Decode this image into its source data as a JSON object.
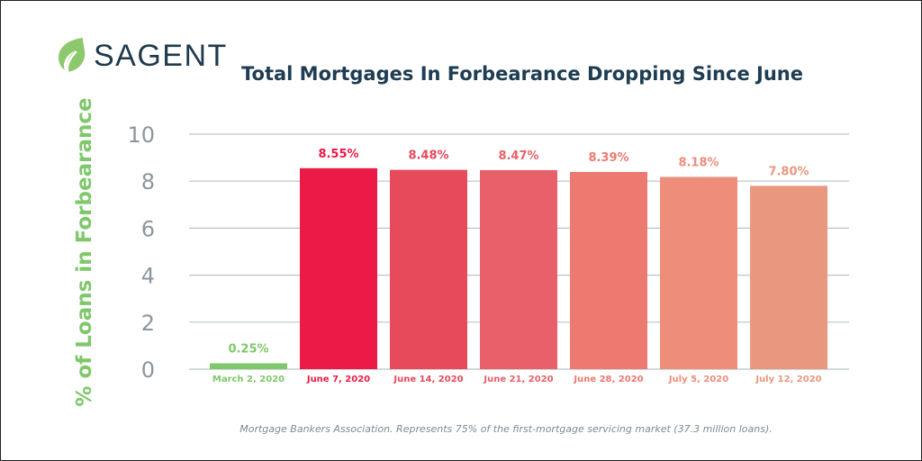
{
  "brand": {
    "name": "SAGENT",
    "colors": {
      "leaf": "#8cc96c",
      "text": "#1f3a4d"
    }
  },
  "source_note": "Mortgage Bankers Association. Represents 75% of the first-mortgage servicing market (37.3 million loans).",
  "chart_data": {
    "type": "bar",
    "title": "Total Mortgages In Forbearance Dropping Since June",
    "xlabel": "",
    "ylabel": "% of Loans in Forbearance",
    "ylim": [
      0,
      10
    ],
    "yticks": [
      0,
      2,
      4,
      6,
      8,
      10
    ],
    "grid": true,
    "categories": [
      "March 2, 2020",
      "June 7, 2020",
      "June 14, 2020",
      "June 21, 2020",
      "June 28, 2020",
      "July 5, 2020",
      "July 12, 2020"
    ],
    "values": [
      0.25,
      8.55,
      8.48,
      8.47,
      8.39,
      8.18,
      7.8
    ],
    "value_labels": [
      "0.25%",
      "8.55%",
      "8.48%",
      "8.47%",
      "8.39%",
      "8.18%",
      "7.80%"
    ],
    "bar_colors": [
      "#7ec86b",
      "#ec1b45",
      "#e64a5b",
      "#e8606a",
      "#ec7a70",
      "#ee8d7a",
      "#ea977f"
    ],
    "label_colors": [
      "#7ec86b",
      "#ec1b45",
      "#e64a5b",
      "#e8606a",
      "#ec7a70",
      "#ee8d7a",
      "#ea977f"
    ]
  }
}
